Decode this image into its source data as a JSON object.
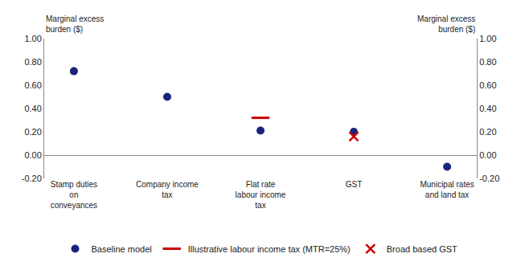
{
  "chart_data": {
    "type": "scatter",
    "categories": [
      "Stamp duties\non\nconveyances",
      "Company income\ntax",
      "Flat rate\nlabour income\ntax",
      "GST",
      "Municipal rates\nand land tax"
    ],
    "series": [
      {
        "name": "Baseline model",
        "color": "#1a237e",
        "marker": "circle",
        "values": [
          0.72,
          0.5,
          0.21,
          0.2,
          -0.1
        ]
      },
      {
        "name": "Illustrative labour income tax (MTR=25%)",
        "color": "#cc0000",
        "marker": "dash",
        "values": [
          null,
          null,
          0.32,
          null,
          null
        ]
      },
      {
        "name": "Broad based GST",
        "color": "#cc0000",
        "marker": "x",
        "values": [
          null,
          null,
          null,
          0.16,
          null
        ]
      }
    ],
    "ylabel": "Marginal excess\nburden ($)",
    "y2label": "Marginal excess\nburden ($)",
    "ylim": [
      -0.2,
      1.0
    ],
    "yticks": [
      {
        "value": -0.2,
        "label": "-0.20"
      },
      {
        "value": 0.0,
        "label": "0.00"
      },
      {
        "value": 0.2,
        "label": "0.20"
      },
      {
        "value": 0.4,
        "label": "0.40"
      },
      {
        "value": 0.6,
        "label": "0.60"
      },
      {
        "value": 0.8,
        "label": "0.80"
      },
      {
        "value": 1.0,
        "label": "1.00"
      }
    ],
    "y2lim": [
      -0.2,
      1.0
    ],
    "y2ticks": [
      {
        "value": -0.2,
        "label": "-0.20"
      },
      {
        "value": 0.0,
        "label": "0.00"
      },
      {
        "value": 0.2,
        "label": "0.20"
      },
      {
        "value": 0.4,
        "label": "0.40"
      },
      {
        "value": 0.6,
        "label": "0.60"
      },
      {
        "value": 0.8,
        "label": "0.80"
      },
      {
        "value": 1.0,
        "label": "1.00"
      }
    ],
    "grid": false,
    "legend": "bottom"
  }
}
